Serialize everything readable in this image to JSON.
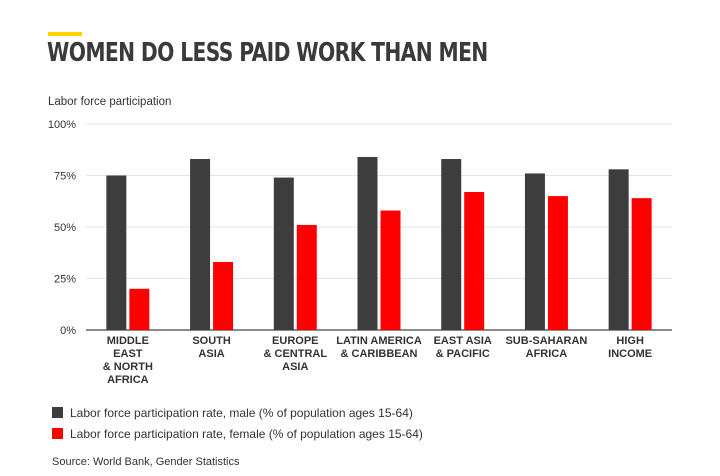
{
  "header": {
    "accent_color": "#ffd200",
    "title": "WOMEN DO LESS PAID WORK THAN MEN"
  },
  "chart_data": {
    "type": "bar",
    "ylabel": "Labor force participation",
    "xlabel": "",
    "ylim": [
      0,
      100
    ],
    "yticks": [
      {
        "value": 0,
        "label": "0%"
      },
      {
        "value": 25,
        "label": "25%"
      },
      {
        "value": 50,
        "label": "50%"
      },
      {
        "value": 75,
        "label": "75%"
      },
      {
        "value": 100,
        "label": "100%"
      }
    ],
    "grid": true,
    "legend_position": "bottom",
    "categories": [
      [
        "MIDDLE",
        "EAST",
        "& NORTH",
        "AFRICA"
      ],
      [
        "SOUTH",
        "ASIA"
      ],
      [
        "EUROPE",
        "& CENTRAL",
        "ASIA"
      ],
      [
        "LATIN AMERICA",
        "& CARIBBEAN"
      ],
      [
        "EAST ASIA",
        "& PACIFIC"
      ],
      [
        "SUB-SAHARAN",
        "AFRICA"
      ],
      [
        "HIGH",
        "INCOME"
      ]
    ],
    "series": [
      {
        "name": "Labor force participation rate, male (% of population ages 15-64)",
        "color": "#3d3d3d",
        "values": [
          75,
          83,
          74,
          84,
          83,
          76,
          78
        ]
      },
      {
        "name": "Labor force participation rate, female (% of population ages 15-64)",
        "color": "#ff0000",
        "values": [
          20,
          33,
          51,
          58,
          67,
          65,
          64
        ]
      }
    ]
  },
  "source": "Source: World Bank, Gender Statistics"
}
